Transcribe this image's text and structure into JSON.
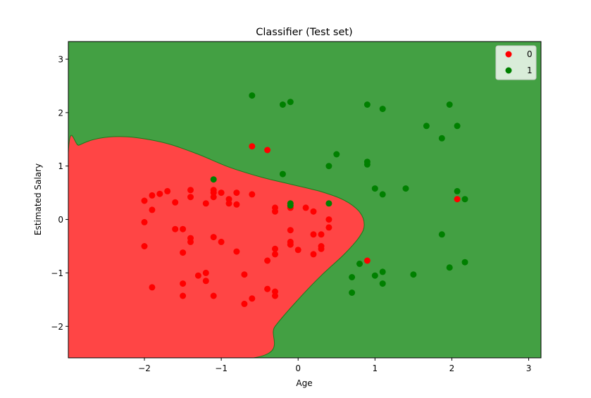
{
  "chart_data": {
    "type": "scatter",
    "title": "Classifier (Test set)",
    "xlabel": "Age",
    "ylabel": "Estimated Salary",
    "xlim": [
      -2.99,
      3.16
    ],
    "ylim": [
      -2.59,
      3.33
    ],
    "xticks": [
      -2,
      -1,
      0,
      1,
      2,
      3
    ],
    "xtick_labels": [
      "−2",
      "−1",
      "0",
      "1",
      "2",
      "3"
    ],
    "yticks": [
      -2,
      -1,
      0,
      1,
      2,
      3
    ],
    "ytick_labels": [
      "−2",
      "−1",
      "0",
      "1",
      "2",
      "3"
    ],
    "background_regions": {
      "description_colors": {
        "0": "#ff4545",
        "1": "#43a043"
      },
      "boundary_color": "#1a7a1a",
      "class_0_region_boundary": [
        [
          -2.99,
          1.25
        ],
        [
          -2.85,
          1.39
        ],
        [
          -2.65,
          1.5
        ],
        [
          -2.4,
          1.55
        ],
        [
          -2.1,
          1.53
        ],
        [
          -1.7,
          1.42
        ],
        [
          -1.3,
          1.22
        ],
        [
          -0.9,
          0.98
        ],
        [
          -0.5,
          0.8
        ],
        [
          -0.1,
          0.66
        ],
        [
          0.3,
          0.52
        ],
        [
          0.6,
          0.36
        ],
        [
          0.8,
          0.14
        ],
        [
          0.86,
          -0.1
        ],
        [
          0.8,
          -0.32
        ],
        [
          0.6,
          -0.65
        ],
        [
          0.3,
          -1.05
        ],
        [
          0.0,
          -1.5
        ],
        [
          -0.3,
          -2.0
        ],
        [
          -0.58,
          -2.59
        ],
        [
          -2.99,
          -2.59
        ]
      ]
    },
    "series": [
      {
        "name": "0",
        "color": "#ff0000",
        "points": [
          [
            -2.0,
            0.35
          ],
          [
            -1.9,
            0.45
          ],
          [
            -1.8,
            0.48
          ],
          [
            -1.7,
            0.53
          ],
          [
            -1.9,
            0.18
          ],
          [
            -2.0,
            -0.05
          ],
          [
            -2.0,
            -0.5
          ],
          [
            -1.6,
            0.32
          ],
          [
            -1.4,
            0.55
          ],
          [
            -1.4,
            0.42
          ],
          [
            -1.6,
            -0.18
          ],
          [
            -1.5,
            -0.18
          ],
          [
            -1.4,
            -0.35
          ],
          [
            -1.4,
            -0.42
          ],
          [
            -1.5,
            -0.62
          ],
          [
            -1.2,
            0.3
          ],
          [
            -1.1,
            0.55
          ],
          [
            -1.1,
            0.5
          ],
          [
            -1.1,
            0.42
          ],
          [
            -1.0,
            0.5
          ],
          [
            -0.9,
            0.38
          ],
          [
            -0.9,
            0.3
          ],
          [
            -0.8,
            0.5
          ],
          [
            -0.8,
            0.28
          ],
          [
            -0.6,
            0.47
          ],
          [
            -1.1,
            -0.33
          ],
          [
            -1.0,
            -0.42
          ],
          [
            -0.8,
            -0.6
          ],
          [
            -1.3,
            -1.05
          ],
          [
            -1.2,
            -1.0
          ],
          [
            -1.2,
            -1.15
          ],
          [
            -1.5,
            -1.2
          ],
          [
            -1.9,
            -1.27
          ],
          [
            -1.5,
            -1.43
          ],
          [
            -1.1,
            -1.43
          ],
          [
            -0.7,
            -1.03
          ],
          [
            -0.4,
            -0.77
          ],
          [
            -0.3,
            0.22
          ],
          [
            -0.3,
            0.15
          ],
          [
            -0.1,
            0.22
          ],
          [
            -0.3,
            -0.55
          ],
          [
            -0.3,
            -0.65
          ],
          [
            -0.1,
            -0.2
          ],
          [
            -0.1,
            -0.42
          ],
          [
            -0.1,
            -0.47
          ],
          [
            0.0,
            -0.57
          ],
          [
            0.1,
            0.22
          ],
          [
            0.2,
            0.15
          ],
          [
            0.2,
            -0.28
          ],
          [
            0.3,
            -0.28
          ],
          [
            0.2,
            -0.65
          ],
          [
            0.3,
            -0.5
          ],
          [
            0.3,
            -0.55
          ],
          [
            0.4,
            0.0
          ],
          [
            0.4,
            -0.15
          ],
          [
            -0.4,
            -1.3
          ],
          [
            -0.3,
            -1.35
          ],
          [
            -0.3,
            -1.43
          ],
          [
            -0.6,
            -1.48
          ],
          [
            -0.7,
            -1.58
          ],
          [
            -0.6,
            1.37
          ],
          [
            -0.4,
            1.3
          ],
          [
            0.9,
            -0.77
          ],
          [
            2.07,
            0.38
          ]
        ]
      },
      {
        "name": "1",
        "color": "#008000",
        "points": [
          [
            -0.6,
            2.32
          ],
          [
            -0.2,
            2.15
          ],
          [
            -0.1,
            2.2
          ],
          [
            0.9,
            2.15
          ],
          [
            1.1,
            2.07
          ],
          [
            1.97,
            2.15
          ],
          [
            1.67,
            1.75
          ],
          [
            2.07,
            1.75
          ],
          [
            1.87,
            1.52
          ],
          [
            0.5,
            1.22
          ],
          [
            0.9,
            1.08
          ],
          [
            0.9,
            1.03
          ],
          [
            0.4,
            1.0
          ],
          [
            -0.2,
            0.85
          ],
          [
            -1.1,
            0.75
          ],
          [
            1.0,
            0.58
          ],
          [
            1.1,
            0.47
          ],
          [
            1.4,
            0.58
          ],
          [
            2.07,
            0.53
          ],
          [
            2.17,
            0.38
          ],
          [
            -0.1,
            0.3
          ],
          [
            -0.1,
            0.26
          ],
          [
            0.4,
            0.3
          ],
          [
            1.87,
            -0.28
          ],
          [
            0.8,
            -0.83
          ],
          [
            0.7,
            -1.08
          ],
          [
            1.0,
            -1.05
          ],
          [
            1.1,
            -0.98
          ],
          [
            1.1,
            -1.2
          ],
          [
            1.5,
            -1.03
          ],
          [
            0.7,
            -1.37
          ],
          [
            1.97,
            -0.9
          ],
          [
            2.17,
            -0.8
          ]
        ]
      }
    ],
    "legend": {
      "placement": "top-right",
      "entries": [
        {
          "label": "0",
          "color": "#ff0000"
        },
        {
          "label": "1",
          "color": "#008000"
        }
      ]
    },
    "grid": false
  }
}
